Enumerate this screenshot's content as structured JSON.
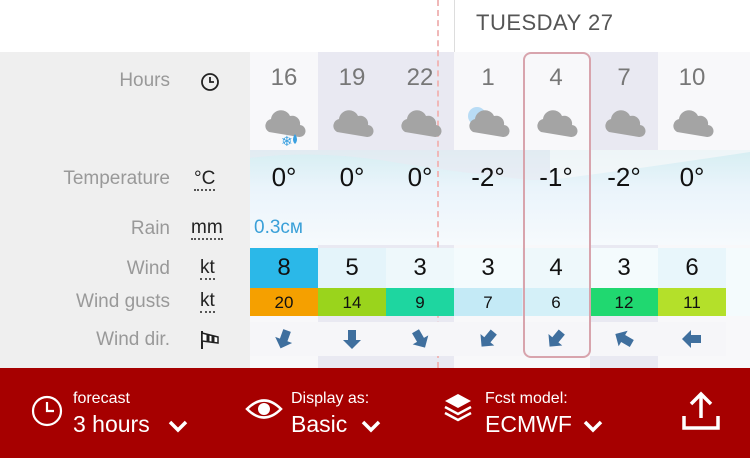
{
  "day_header": "TUESDAY 27",
  "row_labels": [
    "Hours",
    "Temperature",
    "Rain",
    "Wind",
    "Wind gusts",
    "Wind dir."
  ],
  "units": {
    "temperature": "°C",
    "rain": "mm",
    "wind": "kt",
    "gusts": "kt"
  },
  "hours": [
    "16",
    "19",
    "22",
    "1",
    "4",
    "7",
    "10"
  ],
  "temperature": [
    "0°",
    "0°",
    "0°",
    "-2°",
    "-1°",
    "-2°",
    "0°"
  ],
  "rain": "0.3см",
  "wind": [
    "8",
    "5",
    "3",
    "3",
    "4",
    "3",
    "6"
  ],
  "wind_colors": [
    "#2bb8e8",
    "#e4f4fa",
    "#eef8fb",
    "#f4fbfd",
    "#eef8fb",
    "#f4fbfd",
    "#e8f6fb"
  ],
  "gusts": [
    "20",
    "14",
    "9",
    "7",
    "6",
    "12",
    "11"
  ],
  "gust_colors": [
    "#f5a000",
    "#9ad41c",
    "#1ed6a0",
    "#c4eaf6",
    "#d4f0f8",
    "#20d870",
    "#b4e02a"
  ],
  "footer": {
    "forecast": {
      "label": "forecast",
      "value": "3 hours"
    },
    "display": {
      "label": "Display as:",
      "value": "Basic"
    },
    "model": {
      "label": "Fcst model:",
      "value": "ECMWF"
    }
  }
}
